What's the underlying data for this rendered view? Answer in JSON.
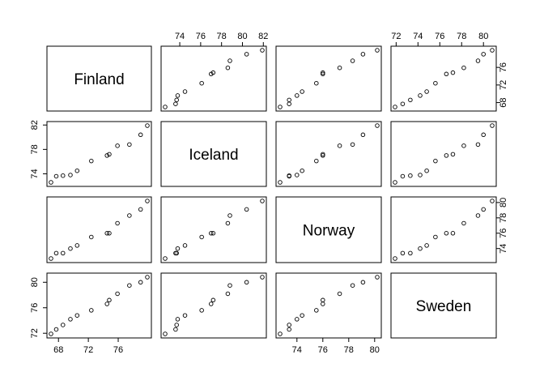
{
  "chart_data": {
    "type": "scatter",
    "variables": [
      "Finland",
      "Iceland",
      "Norway",
      "Sweden"
    ],
    "observations": [
      {
        "Finland": 67.0,
        "Iceland": 72.6,
        "Norway": 72.7,
        "Sweden": 71.9
      },
      {
        "Finland": 67.7,
        "Iceland": 73.6,
        "Norway": 73.4,
        "Sweden": 72.6
      },
      {
        "Finland": 68.6,
        "Iceland": 73.7,
        "Norway": 73.4,
        "Sweden": 73.3
      },
      {
        "Finland": 69.6,
        "Iceland": 73.8,
        "Norway": 74.0,
        "Sweden": 74.2
      },
      {
        "Finland": 70.5,
        "Iceland": 74.5,
        "Norway": 74.4,
        "Sweden": 74.8
      },
      {
        "Finland": 72.4,
        "Iceland": 76.1,
        "Norway": 75.5,
        "Sweden": 75.6
      },
      {
        "Finland": 74.5,
        "Iceland": 77.0,
        "Norway": 76.0,
        "Sweden": 76.6
      },
      {
        "Finland": 74.8,
        "Iceland": 77.2,
        "Norway": 76.0,
        "Sweden": 77.2
      },
      {
        "Finland": 75.9,
        "Iceland": 78.6,
        "Norway": 77.3,
        "Sweden": 78.2
      },
      {
        "Finland": 77.5,
        "Iceland": 78.8,
        "Norway": 78.3,
        "Sweden": 79.5
      },
      {
        "Finland": 79.0,
        "Iceland": 80.4,
        "Norway": 79.1,
        "Sweden": 80.0
      },
      {
        "Finland": 79.9,
        "Iceland": 81.9,
        "Norway": 80.2,
        "Sweden": 80.8
      }
    ],
    "axes": {
      "Finland": {
        "range": [
          67.0,
          79.9
        ],
        "ticks": [
          68,
          72,
          76
        ]
      },
      "Iceland": {
        "range": [
          72.6,
          81.9
        ],
        "ticks": [
          74,
          76,
          78,
          80,
          82
        ]
      },
      "Norway": {
        "range": [
          72.7,
          80.2
        ],
        "ticks": [
          74,
          76,
          78,
          80
        ]
      },
      "Sweden": {
        "range": [
          71.9,
          80.8
        ],
        "ticks": [
          72,
          74,
          76,
          78,
          80
        ]
      }
    },
    "bottom_axis_ticks": {
      "Finland": [
        68,
        72,
        76
      ],
      "Norway": [
        74,
        76,
        78,
        80
      ]
    },
    "top_axis_ticks": {
      "Iceland": [
        74,
        76,
        78,
        80,
        82
      ],
      "Sweden": [
        72,
        74,
        76,
        78,
        80
      ]
    },
    "left_axis_ticks": {
      "Iceland": [
        74,
        78,
        82
      ],
      "Sweden": [
        72,
        76,
        80
      ]
    },
    "right_axis_ticks": {
      "Finland": [
        68,
        72,
        76
      ],
      "Norway": [
        74,
        76,
        78,
        80
      ]
    },
    "grid": false,
    "legend": "none",
    "marker": "open-circle",
    "colors": {
      "background": "#ffffff",
      "stroke": "#000000"
    }
  }
}
